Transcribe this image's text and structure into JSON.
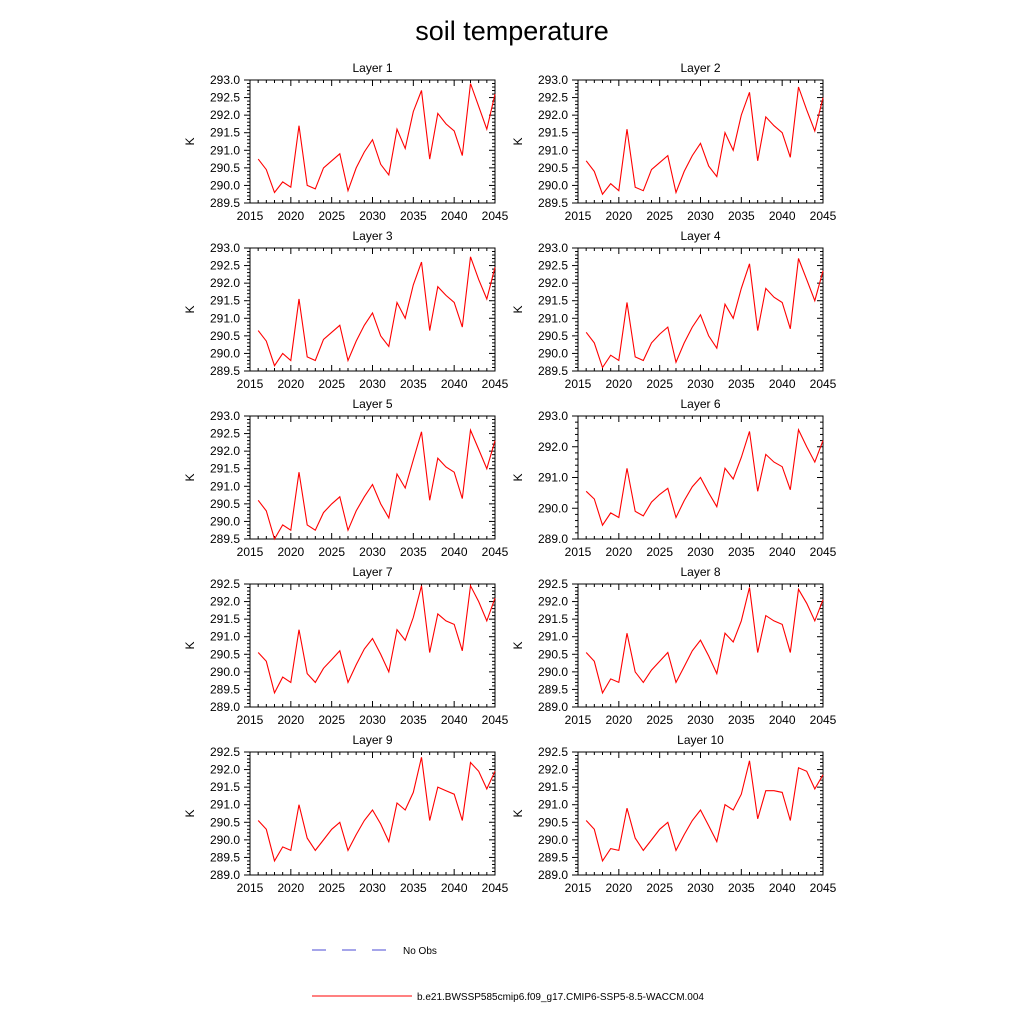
{
  "title": "soil temperature",
  "colors": {
    "model": "#ff0000",
    "obs": "#4b4bd6",
    "axis": "#000000"
  },
  "legend": {
    "obs_label": "No Obs",
    "model_label": "b.e21.BWSSP585cmip6.f09_g17.CMIP6-SSP5-8.5-WACCM.004"
  },
  "chart_data": [
    {
      "type": "line",
      "title": "Layer 1",
      "ylabel": "K",
      "xlim": [
        2015,
        2045
      ],
      "ylim": [
        289.5,
        293.0
      ],
      "xticks": [
        2015,
        2020,
        2025,
        2030,
        2035,
        2040,
        2045
      ],
      "yticks": [
        "289.5",
        "290.0",
        "290.5",
        "291.0",
        "291.5",
        "292.0",
        "292.5",
        "293.0"
      ],
      "x": [
        2016,
        2017,
        2018,
        2019,
        2020,
        2021,
        2022,
        2023,
        2024,
        2025,
        2026,
        2027,
        2028,
        2029,
        2030,
        2031,
        2032,
        2033,
        2034,
        2035,
        2036,
        2037,
        2038,
        2039,
        2040,
        2041,
        2042,
        2043,
        2044,
        2045
      ],
      "y": [
        290.75,
        290.45,
        289.8,
        290.1,
        289.95,
        291.7,
        290.0,
        289.9,
        290.5,
        290.7,
        290.9,
        289.85,
        290.5,
        290.95,
        291.3,
        290.6,
        290.3,
        291.6,
        291.05,
        292.1,
        292.7,
        290.75,
        292.05,
        291.75,
        291.55,
        290.85,
        292.9,
        292.25,
        291.6,
        292.6
      ]
    },
    {
      "type": "line",
      "title": "Layer 2",
      "ylabel": "K",
      "xlim": [
        2015,
        2045
      ],
      "ylim": [
        289.5,
        293.0
      ],
      "xticks": [
        2015,
        2020,
        2025,
        2030,
        2035,
        2040,
        2045
      ],
      "yticks": [
        "289.5",
        "290.0",
        "290.5",
        "291.0",
        "291.5",
        "292.0",
        "292.5",
        "293.0"
      ],
      "x": [
        2016,
        2017,
        2018,
        2019,
        2020,
        2021,
        2022,
        2023,
        2024,
        2025,
        2026,
        2027,
        2028,
        2029,
        2030,
        2031,
        2032,
        2033,
        2034,
        2035,
        2036,
        2037,
        2038,
        2039,
        2040,
        2041,
        2042,
        2043,
        2044,
        2045
      ],
      "y": [
        290.7,
        290.4,
        289.75,
        290.05,
        289.85,
        291.6,
        289.95,
        289.85,
        290.45,
        290.65,
        290.85,
        289.8,
        290.4,
        290.85,
        291.2,
        290.55,
        290.25,
        291.5,
        291.0,
        292.0,
        292.65,
        290.7,
        291.95,
        291.7,
        291.5,
        290.8,
        292.8,
        292.15,
        291.55,
        292.5
      ]
    },
    {
      "type": "line",
      "title": "Layer 3",
      "ylabel": "K",
      "xlim": [
        2015,
        2045
      ],
      "ylim": [
        289.5,
        293.0
      ],
      "xticks": [
        2015,
        2020,
        2025,
        2030,
        2035,
        2040,
        2045
      ],
      "yticks": [
        "289.5",
        "290.0",
        "290.5",
        "291.0",
        "291.5",
        "292.0",
        "292.5",
        "293.0"
      ],
      "x": [
        2016,
        2017,
        2018,
        2019,
        2020,
        2021,
        2022,
        2023,
        2024,
        2025,
        2026,
        2027,
        2028,
        2029,
        2030,
        2031,
        2032,
        2033,
        2034,
        2035,
        2036,
        2037,
        2038,
        2039,
        2040,
        2041,
        2042,
        2043,
        2044,
        2045
      ],
      "y": [
        290.65,
        290.35,
        289.65,
        290.0,
        289.8,
        291.55,
        289.9,
        289.8,
        290.4,
        290.6,
        290.8,
        289.8,
        290.35,
        290.8,
        291.15,
        290.5,
        290.2,
        291.45,
        291.0,
        291.95,
        292.6,
        290.65,
        291.9,
        291.65,
        291.45,
        290.75,
        292.75,
        292.1,
        291.55,
        292.45
      ]
    },
    {
      "type": "line",
      "title": "Layer 4",
      "ylabel": "K",
      "xlim": [
        2015,
        2045
      ],
      "ylim": [
        289.5,
        293.0
      ],
      "xticks": [
        2015,
        2020,
        2025,
        2030,
        2035,
        2040,
        2045
      ],
      "yticks": [
        "289.5",
        "290.0",
        "290.5",
        "291.0",
        "291.5",
        "292.0",
        "292.5",
        "293.0"
      ],
      "x": [
        2016,
        2017,
        2018,
        2019,
        2020,
        2021,
        2022,
        2023,
        2024,
        2025,
        2026,
        2027,
        2028,
        2029,
        2030,
        2031,
        2032,
        2033,
        2034,
        2035,
        2036,
        2037,
        2038,
        2039,
        2040,
        2041,
        2042,
        2043,
        2044,
        2045
      ],
      "y": [
        290.6,
        290.3,
        289.6,
        289.95,
        289.8,
        291.45,
        289.9,
        289.8,
        290.3,
        290.55,
        290.75,
        289.75,
        290.3,
        290.75,
        291.1,
        290.5,
        290.15,
        291.4,
        291.0,
        291.85,
        292.55,
        290.65,
        291.85,
        291.6,
        291.45,
        290.7,
        292.7,
        292.1,
        291.5,
        292.35
      ]
    },
    {
      "type": "line",
      "title": "Layer 5",
      "ylabel": "K",
      "xlim": [
        2015,
        2045
      ],
      "ylim": [
        289.5,
        293.0
      ],
      "xticks": [
        2015,
        2020,
        2025,
        2030,
        2035,
        2040,
        2045
      ],
      "yticks": [
        "289.5",
        "290.0",
        "290.5",
        "291.0",
        "291.5",
        "292.0",
        "292.5",
        "293.0"
      ],
      "x": [
        2016,
        2017,
        2018,
        2019,
        2020,
        2021,
        2022,
        2023,
        2024,
        2025,
        2026,
        2027,
        2028,
        2029,
        2030,
        2031,
        2032,
        2033,
        2034,
        2035,
        2036,
        2037,
        2038,
        2039,
        2040,
        2041,
        2042,
        2043,
        2044,
        2045
      ],
      "y": [
        290.6,
        290.3,
        289.5,
        289.9,
        289.75,
        291.4,
        289.9,
        289.75,
        290.25,
        290.5,
        290.7,
        289.75,
        290.3,
        290.7,
        291.05,
        290.5,
        290.1,
        291.35,
        290.95,
        291.75,
        292.55,
        290.6,
        291.8,
        291.55,
        291.4,
        290.65,
        292.6,
        292.05,
        291.5,
        292.3
      ]
    },
    {
      "type": "line",
      "title": "Layer 6",
      "ylabel": "K",
      "xlim": [
        2015,
        2045
      ],
      "ylim": [
        289.0,
        293.0
      ],
      "xticks": [
        2015,
        2020,
        2025,
        2030,
        2035,
        2040,
        2045
      ],
      "yticks": [
        "289.0",
        "290.0",
        "291.0",
        "292.0",
        "293.0"
      ],
      "x": [
        2016,
        2017,
        2018,
        2019,
        2020,
        2021,
        2022,
        2023,
        2024,
        2025,
        2026,
        2027,
        2028,
        2029,
        2030,
        2031,
        2032,
        2033,
        2034,
        2035,
        2036,
        2037,
        2038,
        2039,
        2040,
        2041,
        2042,
        2043,
        2044,
        2045
      ],
      "y": [
        290.55,
        290.3,
        289.45,
        289.85,
        289.7,
        291.3,
        289.9,
        289.75,
        290.2,
        290.45,
        290.65,
        289.7,
        290.25,
        290.7,
        291.0,
        290.5,
        290.05,
        291.3,
        290.95,
        291.65,
        292.5,
        290.55,
        291.75,
        291.5,
        291.35,
        290.6,
        292.55,
        292.0,
        291.5,
        292.2
      ]
    },
    {
      "type": "line",
      "title": "Layer 7",
      "ylabel": "K",
      "xlim": [
        2015,
        2045
      ],
      "ylim": [
        289.0,
        292.5
      ],
      "xticks": [
        2015,
        2020,
        2025,
        2030,
        2035,
        2040,
        2045
      ],
      "yticks": [
        "289.0",
        "289.5",
        "290.0",
        "290.5",
        "291.0",
        "291.5",
        "292.0",
        "292.5"
      ],
      "x": [
        2016,
        2017,
        2018,
        2019,
        2020,
        2021,
        2022,
        2023,
        2024,
        2025,
        2026,
        2027,
        2028,
        2029,
        2030,
        2031,
        2032,
        2033,
        2034,
        2035,
        2036,
        2037,
        2038,
        2039,
        2040,
        2041,
        2042,
        2043,
        2044,
        2045
      ],
      "y": [
        290.55,
        290.3,
        289.4,
        289.85,
        289.7,
        291.2,
        289.95,
        289.7,
        290.1,
        290.35,
        290.6,
        289.7,
        290.2,
        290.65,
        290.95,
        290.5,
        290.0,
        291.2,
        290.9,
        291.55,
        292.45,
        290.55,
        291.65,
        291.45,
        291.35,
        290.6,
        292.45,
        292.0,
        291.45,
        292.1
      ]
    },
    {
      "type": "line",
      "title": "Layer 8",
      "ylabel": "K",
      "xlim": [
        2015,
        2045
      ],
      "ylim": [
        289.0,
        292.5
      ],
      "xticks": [
        2015,
        2020,
        2025,
        2030,
        2035,
        2040,
        2045
      ],
      "yticks": [
        "289.0",
        "289.5",
        "290.0",
        "290.5",
        "291.0",
        "291.5",
        "292.0",
        "292.5"
      ],
      "x": [
        2016,
        2017,
        2018,
        2019,
        2020,
        2021,
        2022,
        2023,
        2024,
        2025,
        2026,
        2027,
        2028,
        2029,
        2030,
        2031,
        2032,
        2033,
        2034,
        2035,
        2036,
        2037,
        2038,
        2039,
        2040,
        2041,
        2042,
        2043,
        2044,
        2045
      ],
      "y": [
        290.55,
        290.3,
        289.4,
        289.8,
        289.7,
        291.1,
        290.0,
        289.7,
        290.05,
        290.3,
        290.55,
        289.7,
        290.15,
        290.6,
        290.9,
        290.45,
        289.95,
        291.1,
        290.85,
        291.45,
        292.4,
        290.55,
        291.6,
        291.45,
        291.35,
        290.55,
        292.35,
        291.95,
        291.45,
        292.05
      ]
    },
    {
      "type": "line",
      "title": "Layer 9",
      "ylabel": "K",
      "xlim": [
        2015,
        2045
      ],
      "ylim": [
        289.0,
        292.5
      ],
      "xticks": [
        2015,
        2020,
        2025,
        2030,
        2035,
        2040,
        2045
      ],
      "yticks": [
        "289.0",
        "289.5",
        "290.0",
        "290.5",
        "291.0",
        "291.5",
        "292.0",
        "292.5"
      ],
      "x": [
        2016,
        2017,
        2018,
        2019,
        2020,
        2021,
        2022,
        2023,
        2024,
        2025,
        2026,
        2027,
        2028,
        2029,
        2030,
        2031,
        2032,
        2033,
        2034,
        2035,
        2036,
        2037,
        2038,
        2039,
        2040,
        2041,
        2042,
        2043,
        2044,
        2045
      ],
      "y": [
        290.55,
        290.3,
        289.4,
        289.8,
        289.7,
        291.0,
        290.05,
        289.7,
        290.0,
        290.3,
        290.5,
        289.7,
        290.15,
        290.55,
        290.85,
        290.45,
        289.95,
        291.05,
        290.85,
        291.35,
        292.35,
        290.55,
        291.5,
        291.4,
        291.3,
        290.55,
        292.2,
        291.95,
        291.45,
        291.95
      ]
    },
    {
      "type": "line",
      "title": "Layer 10",
      "ylabel": "K",
      "xlim": [
        2015,
        2045
      ],
      "ylim": [
        289.0,
        292.5
      ],
      "xticks": [
        2015,
        2020,
        2025,
        2030,
        2035,
        2040,
        2045
      ],
      "yticks": [
        "289.0",
        "289.5",
        "290.0",
        "290.5",
        "291.0",
        "291.5",
        "292.0",
        "292.5"
      ],
      "x": [
        2016,
        2017,
        2018,
        2019,
        2020,
        2021,
        2022,
        2023,
        2024,
        2025,
        2026,
        2027,
        2028,
        2029,
        2030,
        2031,
        2032,
        2033,
        2034,
        2035,
        2036,
        2037,
        2038,
        2039,
        2040,
        2041,
        2042,
        2043,
        2044,
        2045
      ],
      "y": [
        290.55,
        290.3,
        289.4,
        289.75,
        289.7,
        290.9,
        290.05,
        289.7,
        290.0,
        290.3,
        290.5,
        289.7,
        290.15,
        290.55,
        290.85,
        290.4,
        289.95,
        291.0,
        290.85,
        291.3,
        292.25,
        290.6,
        291.4,
        291.4,
        291.35,
        290.55,
        292.05,
        291.95,
        291.45,
        291.85
      ]
    }
  ]
}
